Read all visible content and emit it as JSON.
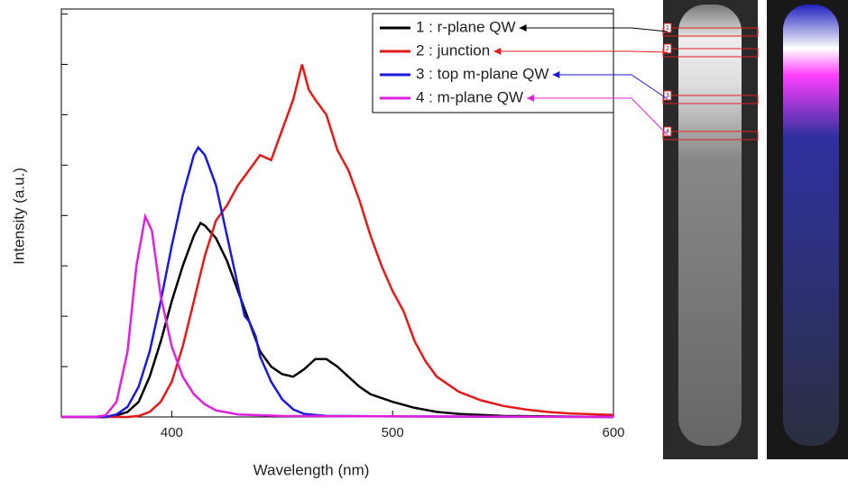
{
  "chart_data": {
    "type": "line",
    "x_label": "Wavelength (nm)",
    "y_label": "Intensity (a.u.)",
    "xlim": [
      350,
      600
    ],
    "xticks": [
      400,
      500,
      600
    ],
    "ylim": [
      0,
      8.1
    ],
    "yticks": [
      0,
      1,
      2,
      3,
      4,
      5,
      6,
      7,
      8
    ],
    "series": [
      {
        "name": "1 : r-plane QW",
        "color": "#000000",
        "x": [
          360,
          370,
          375,
          380,
          385,
          390,
          395,
          400,
          405,
          410,
          413,
          415,
          420,
          425,
          430,
          435,
          440,
          445,
          450,
          455,
          460,
          465,
          470,
          475,
          480,
          485,
          490,
          500,
          510,
          520,
          530,
          550,
          600
        ],
        "values": [
          0,
          0,
          0.03,
          0.1,
          0.3,
          0.8,
          1.5,
          2.3,
          3.0,
          3.6,
          3.85,
          3.8,
          3.55,
          3.1,
          2.5,
          1.9,
          1.3,
          1.0,
          0.85,
          0.8,
          0.95,
          1.15,
          1.15,
          1.0,
          0.8,
          0.6,
          0.45,
          0.3,
          0.18,
          0.1,
          0.06,
          0.02,
          0
        ]
      },
      {
        "name": "2 : junction",
        "color": "#e41a1a",
        "x": [
          350,
          380,
          385,
          390,
          395,
          400,
          405,
          410,
          415,
          420,
          425,
          430,
          435,
          440,
          445,
          450,
          455,
          459,
          462,
          465,
          470,
          475,
          480,
          485,
          490,
          495,
          500,
          505,
          510,
          515,
          520,
          530,
          540,
          550,
          560,
          570,
          580,
          600
        ],
        "values": [
          0,
          0,
          0.02,
          0.1,
          0.3,
          0.7,
          1.4,
          2.3,
          3.2,
          3.9,
          4.2,
          4.6,
          4.9,
          5.2,
          5.1,
          5.7,
          6.3,
          7.0,
          6.5,
          6.3,
          6.0,
          5.3,
          4.9,
          4.3,
          3.6,
          3.0,
          2.5,
          2.1,
          1.5,
          1.1,
          0.8,
          0.5,
          0.33,
          0.22,
          0.15,
          0.1,
          0.07,
          0.04
        ]
      },
      {
        "name": "3 : top m-plane QW",
        "color": "#1a1ae0",
        "x": [
          350,
          370,
          375,
          380,
          385,
          390,
          395,
          400,
          405,
          410,
          412,
          415,
          420,
          425,
          430,
          433,
          435,
          438,
          440,
          445,
          450,
          455,
          460,
          470,
          500,
          600
        ],
        "values": [
          0,
          0,
          0.05,
          0.2,
          0.6,
          1.3,
          2.3,
          3.4,
          4.4,
          5.2,
          5.35,
          5.2,
          4.6,
          3.6,
          2.6,
          2.0,
          1.9,
          1.6,
          1.2,
          0.7,
          0.35,
          0.15,
          0.06,
          0.02,
          0.01,
          0
        ]
      },
      {
        "name": "4 : m-plane QW",
        "color": "#e020e0",
        "x": [
          350,
          365,
          370,
          375,
          380,
          384,
          388,
          391,
          395,
          400,
          405,
          410,
          415,
          420,
          430,
          450,
          600
        ],
        "values": [
          0,
          0,
          0.03,
          0.3,
          1.3,
          3.0,
          3.98,
          3.7,
          2.4,
          1.4,
          0.8,
          0.45,
          0.25,
          0.13,
          0.05,
          0.02,
          0
        ]
      }
    ]
  },
  "image_markers": [
    "1",
    "2",
    "3",
    "4"
  ]
}
